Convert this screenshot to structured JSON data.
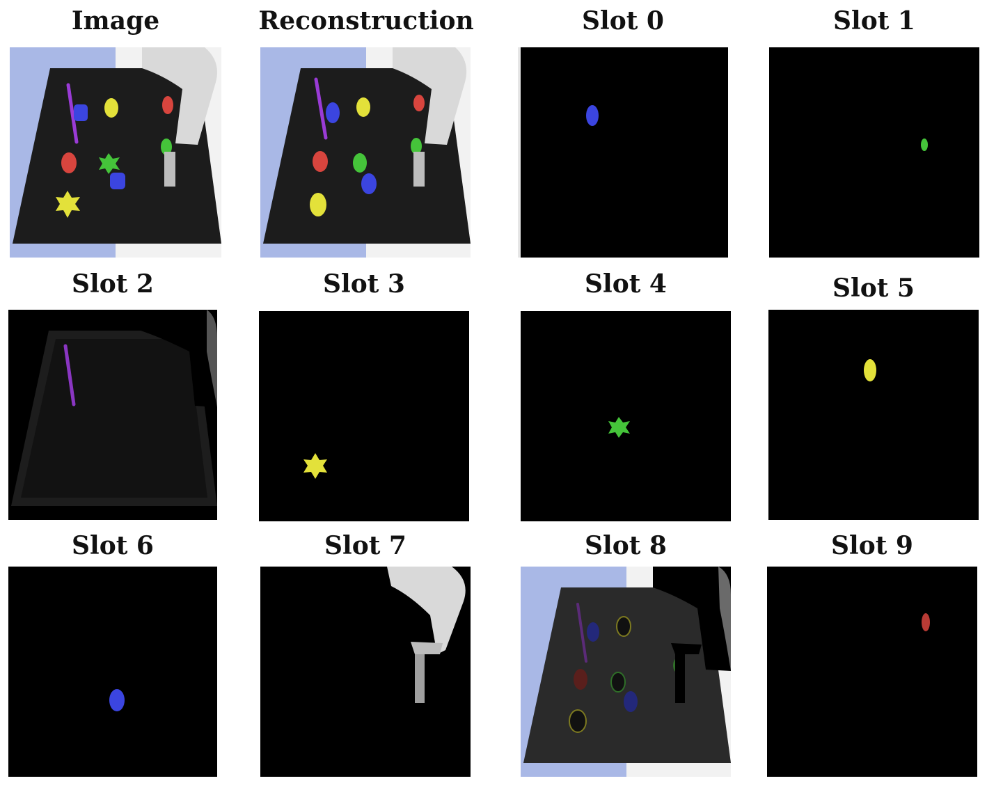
{
  "panels": [
    {
      "key": "image",
      "title": "Image"
    },
    {
      "key": "reconstruction",
      "title": "Reconstruction"
    },
    {
      "key": "slot0",
      "title": "Slot 0"
    },
    {
      "key": "slot1",
      "title": "Slot 1"
    },
    {
      "key": "slot2",
      "title": "Slot 2"
    },
    {
      "key": "slot3",
      "title": "Slot 3"
    },
    {
      "key": "slot4",
      "title": "Slot 4"
    },
    {
      "key": "slot5",
      "title": "Slot 5"
    },
    {
      "key": "slot6",
      "title": "Slot 6"
    },
    {
      "key": "slot7",
      "title": "Slot 7"
    },
    {
      "key": "slot8",
      "title": "Slot 8"
    },
    {
      "key": "slot9",
      "title": "Slot 9"
    }
  ],
  "colors": {
    "background_blue": "#a9b8e6",
    "background_white": "#f2f2f2",
    "table": "#1c1c1c",
    "mask_black": "#000000",
    "obj_blue": "#3b45e0",
    "obj_yellow": "#e3e13a",
    "obj_green": "#45c43a",
    "obj_red": "#d8453e",
    "obj_purple": "#9a3bd6",
    "robot": "#d9d9d9"
  }
}
